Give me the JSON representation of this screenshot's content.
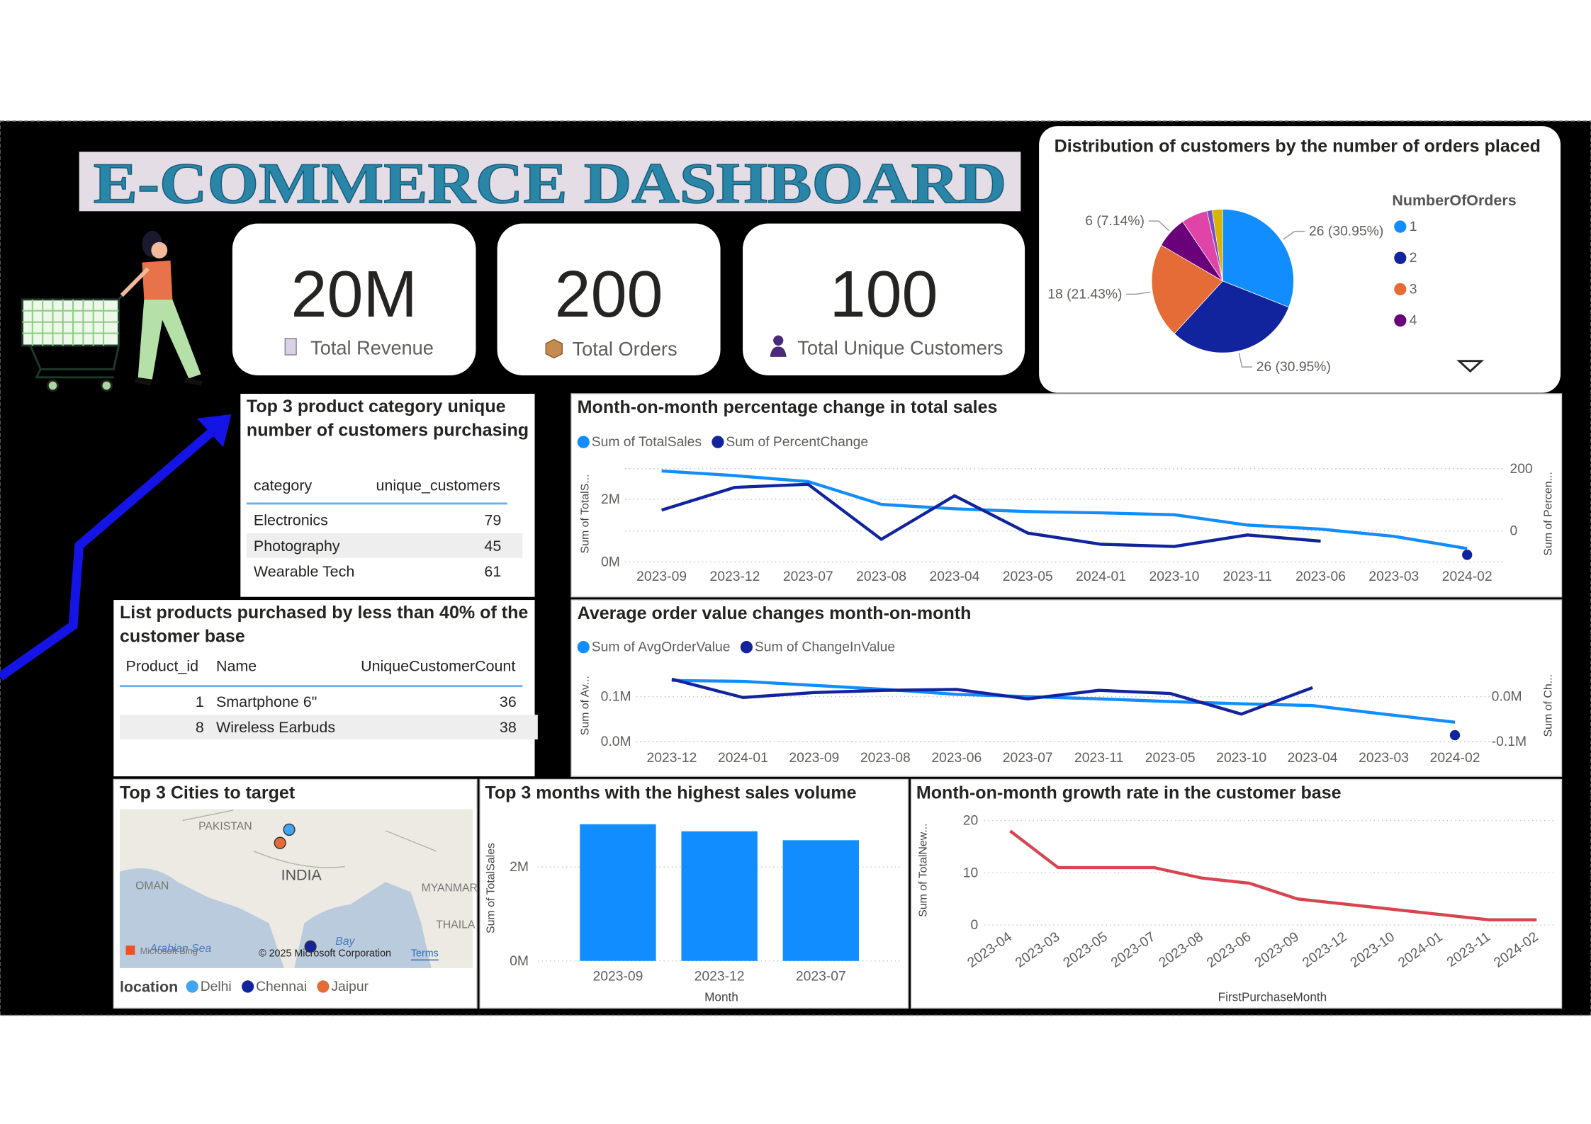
{
  "header": {
    "title": "E-COMMERCE DASHBOARD"
  },
  "kpis": [
    {
      "value": "20M",
      "label": "Total Revenue"
    },
    {
      "value": "200",
      "label": "Total Orders"
    },
    {
      "value": "100",
      "label": "Total Unique Customers"
    }
  ],
  "tables": [
    {
      "title": "Top 3 product category unique number of customers purchasing",
      "columns": [
        "category",
        "unique_customers"
      ],
      "rows": [
        [
          "Electronics",
          79
        ],
        [
          "Photography",
          45
        ],
        [
          "Wearable Tech",
          61
        ]
      ]
    },
    {
      "title": "List products purchased by less than 40% of the customer base",
      "columns": [
        "Product_id",
        "Name",
        "UniqueCustomerCount"
      ],
      "rows": [
        [
          1,
          "Smartphone 6\"",
          36
        ],
        [
          8,
          "Wireless Earbuds",
          38
        ]
      ]
    }
  ],
  "map": {
    "title": "Top 3 Cities to target",
    "legend_title": "location",
    "locations": [
      {
        "name": "Delhi",
        "color": "#41a5f5"
      },
      {
        "name": "Chennai",
        "color": "#12239E"
      },
      {
        "name": "Jaipur",
        "color": "#E66C37"
      }
    ],
    "labels": [
      "PAKISTAN",
      "INDIA",
      "OMAN",
      "MYANMAR",
      "THAILA",
      "Arabian Sea",
      "Bay",
      "© 2025 Microsoft Corporation",
      "Terms",
      "Microsoft Bing"
    ]
  },
  "chart_data": [
    {
      "type": "pie",
      "title": "Distribution of customers by the number of orders placed",
      "legend_title": "NumberOfOrders",
      "categories": [
        "1",
        "2",
        "3",
        "4",
        null,
        null,
        null
      ],
      "values": [
        26,
        26,
        18,
        6,
        5,
        1,
        2
      ],
      "value_labels": [
        "26 (30.95%)",
        "26 (30.95%)",
        "18 (21.43%)",
        "6 (7.14%)",
        null,
        null,
        null
      ],
      "colors": [
        "#118DFF",
        "#12239E",
        "#E66C37",
        "#6B007B",
        "#E044A7",
        "#744EC2",
        "#D9B300"
      ]
    },
    {
      "type": "line",
      "title": "Month-on-month percentage change in total sales",
      "categories": [
        "2023-09",
        "2023-12",
        "2023-07",
        "2023-08",
        "2023-04",
        "2023-05",
        "2024-01",
        "2023-10",
        "2023-11",
        "2023-06",
        "2023-03",
        "2024-02"
      ],
      "series": [
        {
          "name": "Sum of TotalSales",
          "color": "#118DFF",
          "values": [
            2910000,
            2760000,
            2570000,
            1840000,
            1700000,
            1610000,
            1570000,
            1510000,
            1180000,
            1050000,
            820000,
            430000
          ]
        },
        {
          "name": "Sum of PercentChange",
          "color": "#12239E",
          "axis": "y2",
          "values": [
            67,
            140,
            150,
            -27,
            113,
            -7,
            -43,
            -50,
            -13,
            -33,
            null,
            -77
          ]
        }
      ],
      "ylim": [
        0,
        3080000
      ],
      "yticks": [
        {
          "value": 0,
          "label": "0M"
        },
        {
          "value": 2000000,
          "label": "2M"
        }
      ],
      "y2lim": [
        -100,
        210
      ],
      "y2ticks": [
        0,
        200
      ],
      "ylabel": "Sum of TotalS...",
      "y2label": "Sum of Percen...",
      "grid": true
    },
    {
      "type": "line",
      "title": "Average order value changes month-on-month",
      "categories": [
        "2023-12",
        "2024-01",
        "2023-09",
        "2023-08",
        "2023-06",
        "2023-07",
        "2023-11",
        "2023-05",
        "2023-10",
        "2023-04",
        "2023-03",
        "2024-02"
      ],
      "series": [
        {
          "name": "Sum of AvgOrderValue",
          "color": "#118DFF",
          "values": [
            136000,
            134000,
            125000,
            116000,
            105000,
            100000,
            95000,
            89000,
            84000,
            80000,
            61000,
            43000
          ]
        },
        {
          "name": "Sum of ChangeInValue",
          "color": "#12239E",
          "axis": "y2",
          "values": [
            39000,
            -2000,
            9000,
            14000,
            16000,
            -5000,
            14000,
            7000,
            -39000,
            20000,
            null,
            -86000
          ]
        }
      ],
      "ylim": [
        0,
        160000
      ],
      "yticks": [
        {
          "value": 0,
          "label": "0.0M"
        },
        {
          "value": 100000,
          "label": "0.1M"
        }
      ],
      "y2lim": [
        -100000,
        60000
      ],
      "y2ticks": [
        {
          "value": -100000,
          "label": "-0.1M"
        },
        {
          "value": 0,
          "label": "0.0M"
        }
      ],
      "ylabel": "Sum of Av...",
      "y2label": "Sum of Ch...",
      "grid": true
    },
    {
      "type": "bar",
      "title": "Top 3 months with the highest sales volume",
      "categories": [
        "2023-09",
        "2023-12",
        "2023-07"
      ],
      "values": [
        2910000,
        2760000,
        2570000
      ],
      "color": "#118DFF",
      "ylim": [
        0,
        3100000
      ],
      "yticks": [
        {
          "value": 0,
          "label": "0M"
        },
        {
          "value": 2000000,
          "label": "2M"
        }
      ],
      "xlabel": "Month",
      "ylabel": "Sum of TotalSales",
      "grid": true
    },
    {
      "type": "line",
      "title": "Month-on-month growth rate in the customer base",
      "categories": [
        "2023-04",
        "2023-03",
        "2023-05",
        "2023-07",
        "2023-08",
        "2023-06",
        "2023-09",
        "2023-12",
        "2023-10",
        "2024-01",
        "2023-11",
        "2024-02"
      ],
      "values": [
        18,
        11,
        11,
        11,
        9,
        8,
        5,
        4,
        3,
        2,
        1,
        1
      ],
      "color": "#D64550",
      "ylim": [
        0,
        21
      ],
      "yticks": [
        0,
        10,
        20
      ],
      "xlabel": "FirstPurchaseMonth",
      "ylabel": "Sum of TotalNew...",
      "grid": true
    }
  ]
}
